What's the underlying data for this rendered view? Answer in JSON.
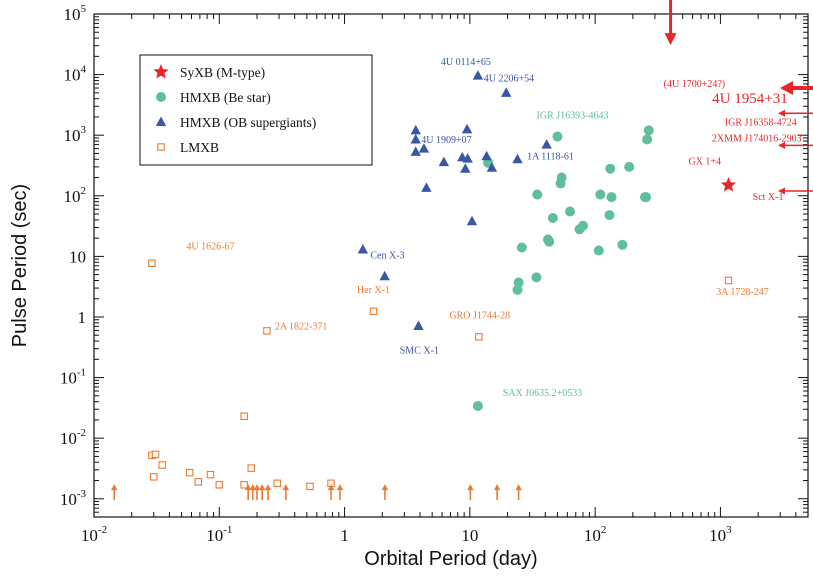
{
  "chart_data": {
    "type": "scatter",
    "xlabel": "Orbital Period (day)",
    "ylabel": "Pulse Period (sec)",
    "xscale": "log",
    "yscale": "log",
    "xlim": [
      0.01,
      5000
    ],
    "ylim": [
      0.0005,
      100000
    ],
    "x_tick_labels": [
      {
        "base": "10",
        "exp": "-2"
      },
      {
        "base": "10",
        "exp": "-1"
      },
      {
        "base": "1",
        "exp": ""
      },
      {
        "base": "10",
        "exp": ""
      },
      {
        "base": "10",
        "exp": "2"
      },
      {
        "base": "10",
        "exp": "3"
      }
    ],
    "y_tick_labels": [
      {
        "base": "10",
        "exp": "-3"
      },
      {
        "base": "10",
        "exp": "-2"
      },
      {
        "base": "10",
        "exp": "-1"
      },
      {
        "base": "1",
        "exp": ""
      },
      {
        "base": "10",
        "exp": ""
      },
      {
        "base": "10",
        "exp": "2"
      },
      {
        "base": "10",
        "exp": "3"
      },
      {
        "base": "10",
        "exp": "4"
      },
      {
        "base": "10",
        "exp": "5"
      }
    ],
    "grid": false,
    "legend_position": "top-left",
    "colors": {
      "syxb": "#e8262a",
      "hmxb_be": "#5fbf9a",
      "hmxb_ob": "#3a56a6",
      "lmxb": "#ee7a30"
    },
    "series": [
      {
        "name": "SyXB (M-type)",
        "marker": "star",
        "points": [
          [
            1160,
            150
          ]
        ]
      },
      {
        "name": "HMXB (Be star)",
        "marker": "circle",
        "points": [
          [
            11.6,
            0.034
          ],
          [
            24,
            2.8
          ],
          [
            24.5,
            3.7
          ],
          [
            26,
            14
          ],
          [
            34,
            4.5
          ],
          [
            34.5,
            105
          ],
          [
            42,
            19
          ],
          [
            43,
            17.5
          ],
          [
            46,
            43
          ],
          [
            50,
            950
          ],
          [
            53,
            160
          ],
          [
            54,
            200
          ],
          [
            75,
            28
          ],
          [
            80,
            32
          ],
          [
            107,
            12.5
          ],
          [
            110,
            105
          ],
          [
            130,
            48
          ],
          [
            132,
            280
          ],
          [
            135,
            95
          ],
          [
            165,
            15.5
          ],
          [
            187,
            300
          ],
          [
            250,
            95
          ],
          [
            255,
            95
          ],
          [
            260,
            850
          ],
          [
            268,
            1200
          ],
          [
            14,
            350
          ],
          [
            63,
            55
          ]
        ]
      },
      {
        "name": "HMXB (OB supergiants)",
        "marker": "triangle",
        "points": [
          [
            11.6,
            9600
          ],
          [
            19.5,
            5000
          ],
          [
            9.5,
            1250
          ],
          [
            3.7,
            1200
          ],
          [
            3.7,
            850
          ],
          [
            3.7,
            530
          ],
          [
            4.3,
            600
          ],
          [
            6.2,
            360
          ],
          [
            8.7,
            430
          ],
          [
            9.6,
            410
          ],
          [
            9.2,
            280
          ],
          [
            13.6,
            450
          ],
          [
            15,
            290
          ],
          [
            24,
            400
          ],
          [
            41,
            700
          ],
          [
            4.5,
            135
          ],
          [
            10.4,
            38
          ],
          [
            1.4,
            13
          ],
          [
            2.09,
            4.7
          ],
          [
            3.89,
            0.71
          ]
        ]
      },
      {
        "name": "LMXB",
        "marker": "square",
        "points": [
          [
            0.029,
            7.7
          ],
          [
            0.24,
            0.59
          ],
          [
            1.7,
            1.24
          ],
          [
            11.8,
            0.47
          ],
          [
            1160,
            4.0
          ],
          [
            0.158,
            0.023
          ],
          [
            0.029,
            0.0052
          ],
          [
            0.031,
            0.0054
          ],
          [
            0.035,
            0.0036
          ],
          [
            0.03,
            0.0023
          ],
          [
            0.058,
            0.0027
          ],
          [
            0.068,
            0.0019
          ],
          [
            0.085,
            0.0025
          ],
          [
            0.1,
            0.0017
          ],
          [
            0.158,
            0.0017
          ],
          [
            0.18,
            0.0032
          ],
          [
            0.29,
            0.0018
          ],
          [
            0.53,
            0.0016
          ],
          [
            0.78,
            0.0018
          ]
        ]
      }
    ],
    "lower_limit_arrows_x": [
      0.0145,
      0.17,
      0.185,
      0.2,
      0.22,
      0.245,
      0.34,
      0.78,
      0.92,
      2.1,
      10.1,
      16.5,
      24.5
    ],
    "lower_limit_arrow_y": 0.00095,
    "annotations": [
      {
        "text": "4U 0114+65",
        "x": 9.3,
        "y": 14500,
        "color": "#3a56a6"
      },
      {
        "text": "4U 2206+54",
        "x": 20.5,
        "y": 7700,
        "color": "#3a56a6"
      },
      {
        "text": "4U 1909+07",
        "x": 6.5,
        "y": 750,
        "color": "#3a56a6"
      },
      {
        "text": "1A 1118-61",
        "x": 44,
        "y": 400,
        "color": "#3a56a6"
      },
      {
        "text": "Cen X-3",
        "x": 2.2,
        "y": 9.2,
        "color": "#3a56a6"
      },
      {
        "text": "SMC X-1",
        "x": 3.95,
        "y": 0.25,
        "color": "#3a56a6"
      },
      {
        "text": "IGR J16393-4643",
        "x": 66,
        "y": 1900,
        "color": "#5fbf9a"
      },
      {
        "text": "SAX J0635.2+0533",
        "x": 38,
        "y": 0.05,
        "color": "#5fbf9a"
      },
      {
        "text": "4U 1626-67",
        "x": 0.085,
        "y": 13,
        "color": "#ee7a30"
      },
      {
        "text": "2A 1822-371",
        "x": 0.45,
        "y": 0.62,
        "color": "#ee7a30"
      },
      {
        "text": "Her X-1",
        "x": 1.7,
        "y": 2.5,
        "color": "#ee7a30"
      },
      {
        "text": "GRO J1744-28",
        "x": 12,
        "y": 0.95,
        "color": "#ee7a30"
      },
      {
        "text": "3A 1728-247",
        "x": 1500,
        "y": 2.3,
        "color": "#ee7a30"
      },
      {
        "text": "(4U 1700+24?)",
        "x": 620,
        "y": 6300,
        "color": "#e8262a"
      },
      {
        "text": "4U 1954+31",
        "x": 1720,
        "y": 3400,
        "color": "#e8262a",
        "big": true
      },
      {
        "text": "IGR J16358-4724",
        "x": 2100,
        "y": 1450,
        "color": "#e8262a"
      },
      {
        "text": "2XMM J174016-2903",
        "x": 1950,
        "y": 780,
        "color": "#e8262a"
      },
      {
        "text": "GX 1+4",
        "x": 750,
        "y": 330,
        "color": "#e8262a"
      },
      {
        "text": "Sct X-1",
        "x": 2400,
        "y": 85,
        "color": "#e8262a"
      }
    ],
    "upper_limit_arrow": {
      "x": 400,
      "y_top": 100000,
      "y_bottom": 33000,
      "color": "#e8262a"
    },
    "left_arrows": [
      {
        "y": 6000,
        "color": "#e8262a",
        "thick": true
      },
      {
        "y": 2300,
        "color": "#e8262a",
        "thick": false
      },
      {
        "y": 680,
        "color": "#e8262a",
        "thick": false
      },
      {
        "y": 120,
        "color": "#e8262a",
        "thick": false
      }
    ]
  }
}
